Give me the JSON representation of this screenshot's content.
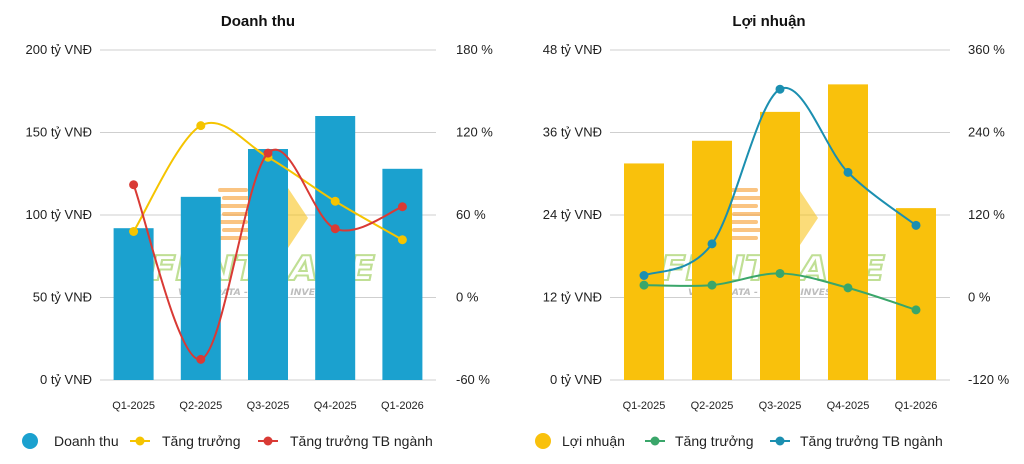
{
  "watermark": {
    "text": "FIINTRADE",
    "tagline": "VALUE DATA - SMART INVEST",
    "primary_color": "#8dc63f",
    "secondary_color": "#f7941d"
  },
  "chart_data": [
    {
      "type": "bar",
      "title": "Doanh thu",
      "categories": [
        "Q1-2025",
        "Q2-2025",
        "Q3-2025",
        "Q4-2025",
        "Q1-2026"
      ],
      "y_left": {
        "ticks": [
          "200 tỷ VNĐ",
          "150 tỷ VNĐ",
          "100 tỷ VNĐ",
          "50 tỷ VNĐ",
          "0 tỷ VNĐ"
        ],
        "ylim": [
          0,
          200
        ]
      },
      "y_right": {
        "ticks": [
          "180 %",
          "120 %",
          "60 %",
          "0 %",
          "-60 %"
        ],
        "ylim": [
          -60,
          180
        ]
      },
      "grid": true,
      "legend_position": "bottom",
      "series": [
        {
          "name": "Doanh thu",
          "kind": "bar",
          "axis": "left",
          "color": "#1ba1cf",
          "values": [
            92,
            111,
            140,
            160,
            128
          ]
        },
        {
          "name": "Tăng trưởng",
          "kind": "line",
          "axis": "right",
          "color": "#f5c400",
          "values": [
            48,
            125,
            102,
            70,
            42
          ]
        },
        {
          "name": "Tăng trưởng TB ngành",
          "kind": "line",
          "axis": "right",
          "color": "#d93a35",
          "values": [
            82,
            -45,
            105,
            50,
            66
          ]
        }
      ]
    },
    {
      "type": "bar",
      "title": "Lợi nhuận",
      "categories": [
        "Q1-2025",
        "Q2-2025",
        "Q3-2025",
        "Q4-2025",
        "Q1-2026"
      ],
      "y_left": {
        "ticks": [
          "48 tỷ VNĐ",
          "36 tỷ VNĐ",
          "24 tỷ VNĐ",
          "12 tỷ VNĐ",
          "0 tỷ VNĐ"
        ],
        "ylim": [
          0,
          48
        ]
      },
      "y_right": {
        "ticks": [
          "360 %",
          "240 %",
          "120 %",
          "0 %",
          "-120 %"
        ],
        "ylim": [
          -120,
          360
        ]
      },
      "grid": true,
      "legend_position": "bottom",
      "series": [
        {
          "name": "Lợi nhuận",
          "kind": "bar",
          "axis": "left",
          "color": "#f9c10c",
          "values": [
            31.5,
            34.8,
            39,
            43,
            25
          ]
        },
        {
          "name": "Tăng trưởng",
          "kind": "line",
          "axis": "right",
          "color": "#3aa66a",
          "values": [
            18,
            18,
            35,
            14,
            -18
          ]
        },
        {
          "name": "Tăng trưởng TB ngành",
          "kind": "line",
          "axis": "right",
          "color": "#1b8fb0",
          "values": [
            32,
            78,
            303,
            182,
            105
          ]
        }
      ]
    }
  ]
}
